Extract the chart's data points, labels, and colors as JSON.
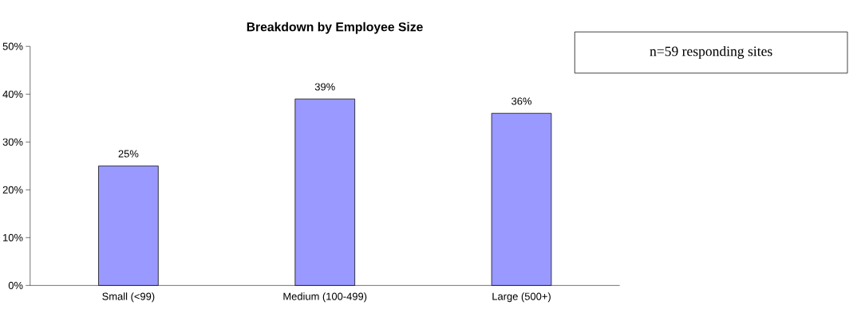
{
  "chart_data": {
    "type": "bar",
    "title": "Breakdown by Employee Size",
    "categories": [
      "Small (<99)",
      "Medium (100-499)",
      "Large (500+)"
    ],
    "values": [
      25,
      39,
      36
    ],
    "value_labels": [
      "25%",
      "39%",
      "36%"
    ],
    "color": "#9999ff",
    "ylim": [
      0,
      50
    ],
    "yticks": [
      {
        "value": 0,
        "label": "0%"
      },
      {
        "value": 10,
        "label": "10%"
      },
      {
        "value": 20,
        "label": "20%"
      },
      {
        "value": 30,
        "label": "30%"
      },
      {
        "value": 40,
        "label": "40%"
      },
      {
        "value": 50,
        "label": "50%"
      }
    ],
    "annotations": [
      "n=59 responding sites"
    ]
  }
}
